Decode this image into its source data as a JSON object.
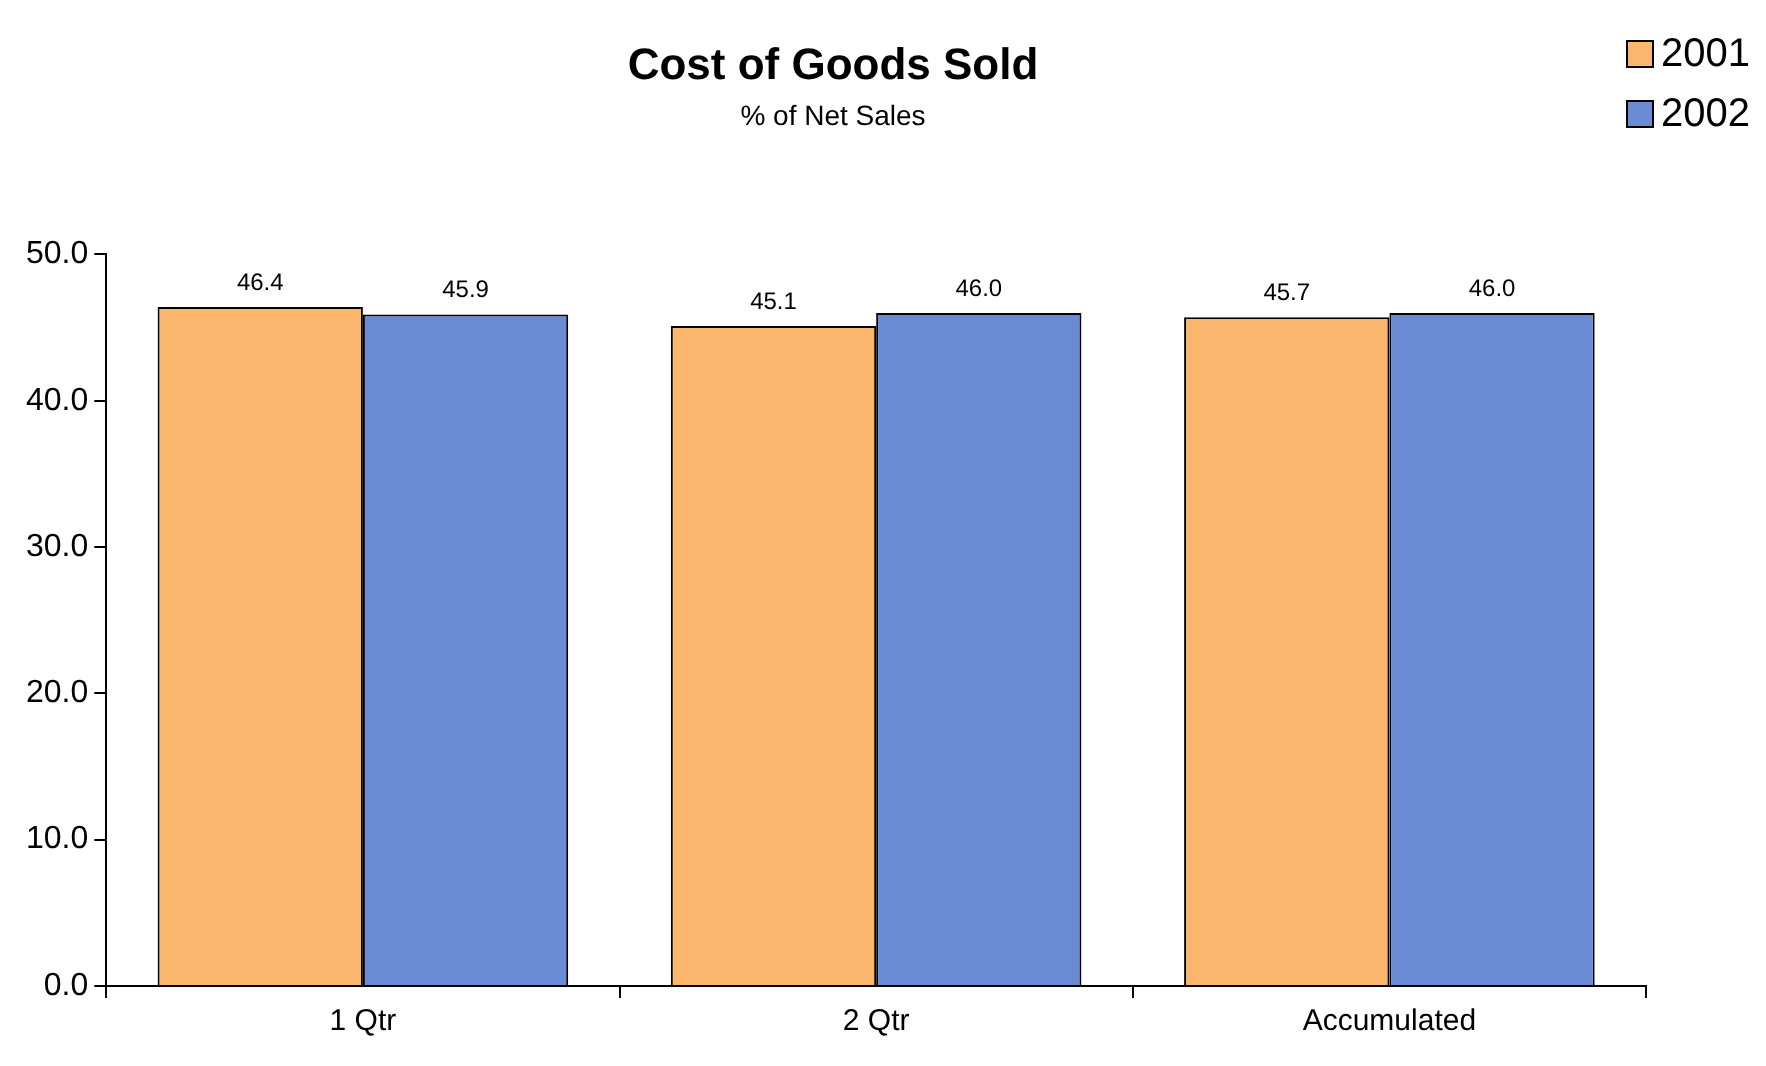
{
  "chart_data": {
    "type": "bar",
    "title": "Cost of Goods Sold",
    "subtitle": "% of Net Sales",
    "categories": [
      "1 Qtr",
      "2 Qtr",
      "Accumulated"
    ],
    "series": [
      {
        "name": "2001",
        "color": "#fbb66e",
        "values": [
          46.4,
          45.1,
          45.7
        ],
        "value_labels": [
          "46.4",
          "45.1",
          "45.7"
        ]
      },
      {
        "name": "2002",
        "color": "#6a8ad4",
        "values": [
          45.9,
          46.0,
          46.0
        ],
        "value_labels": [
          "45.9",
          "46.0",
          "46.0"
        ]
      }
    ],
    "ylim": [
      0,
      50
    ],
    "yticks": [
      {
        "value": 0,
        "label": "0.0"
      },
      {
        "value": 10,
        "label": "10.0"
      },
      {
        "value": 20,
        "label": "20.0"
      },
      {
        "value": 30,
        "label": "30.0"
      },
      {
        "value": 40,
        "label": "40.0"
      },
      {
        "value": 50,
        "label": "50.0"
      }
    ],
    "grid": false,
    "legend": "top right"
  }
}
